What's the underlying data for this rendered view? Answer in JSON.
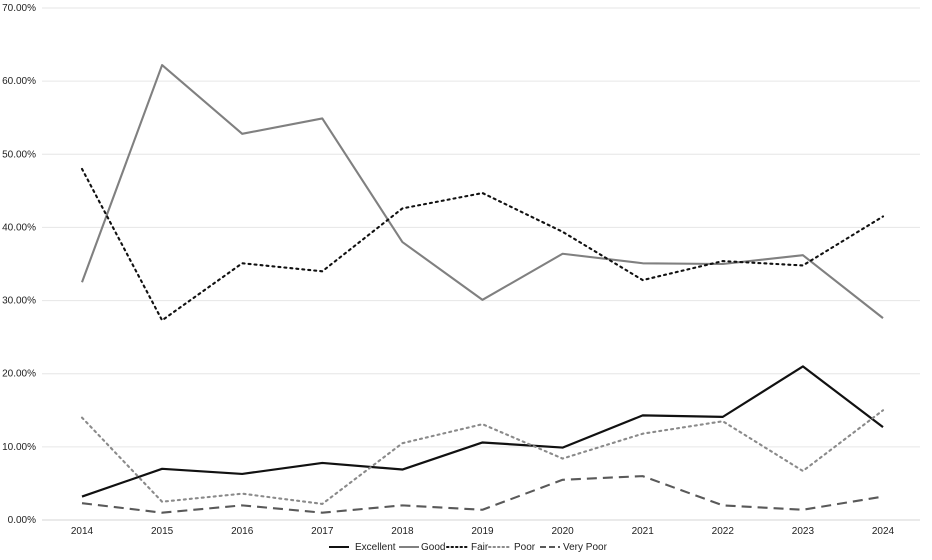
{
  "chart_data": {
    "type": "line",
    "title": "",
    "xlabel": "",
    "ylabel": "",
    "x": [
      "2014",
      "2015",
      "2016",
      "2017",
      "2018",
      "2019",
      "2020",
      "2021",
      "2022",
      "2023",
      "2024"
    ],
    "ylim": [
      0,
      70
    ],
    "y_ticks": [
      "0.00%",
      "10.00%",
      "20.00%",
      "30.00%",
      "40.00%",
      "50.00%",
      "60.00%",
      "70.00%"
    ],
    "grid": "horizontal",
    "legend_position": "bottom",
    "series": [
      {
        "name": "Excellent",
        "values": [
          3.2,
          7.0,
          6.3,
          7.8,
          6.9,
          10.6,
          9.9,
          14.3,
          14.1,
          21.0,
          12.7
        ],
        "color": "#111111",
        "dash": "solid"
      },
      {
        "name": "Good",
        "values": [
          32.5,
          62.2,
          52.8,
          54.9,
          38.0,
          30.1,
          36.4,
          35.1,
          35.0,
          36.2,
          27.6
        ],
        "color": "#808080",
        "dash": "solid"
      },
      {
        "name": "Fair",
        "values": [
          48.0,
          27.3,
          35.1,
          34.0,
          42.6,
          44.7,
          39.4,
          32.8,
          35.4,
          34.8,
          41.5
        ],
        "color": "#111111",
        "dash": "dotted"
      },
      {
        "name": "Poor",
        "values": [
          14.0,
          2.5,
          3.6,
          2.2,
          10.5,
          13.1,
          8.4,
          11.8,
          13.5,
          6.7,
          15.0
        ],
        "color": "#8a8a8a",
        "dash": "dotted"
      },
      {
        "name": "Very Poor",
        "values": [
          2.3,
          1.0,
          2.0,
          1.0,
          2.0,
          1.4,
          5.5,
          6.0,
          2.0,
          1.4,
          3.2
        ],
        "color": "#595959",
        "dash": "dashed"
      }
    ]
  }
}
